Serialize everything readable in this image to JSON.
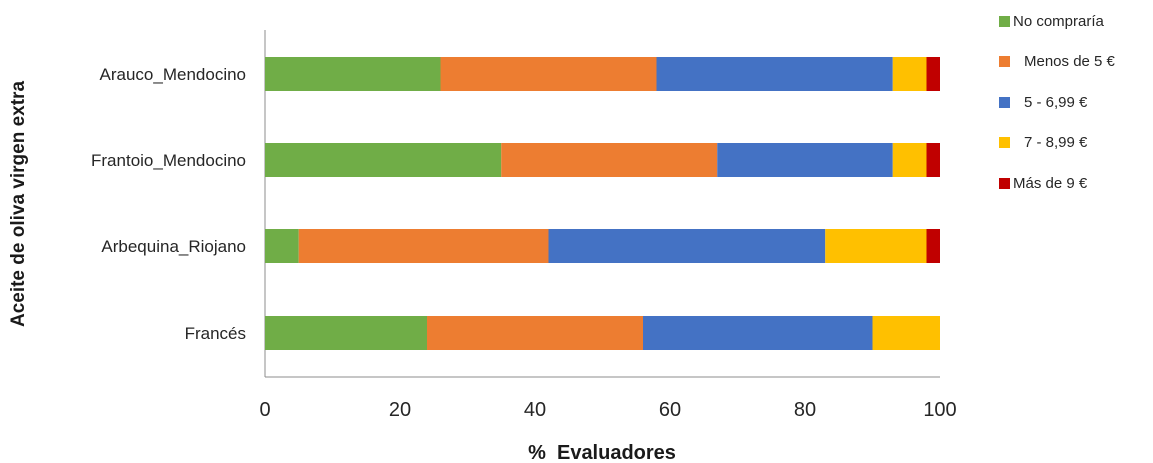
{
  "chart_data": {
    "type": "bar",
    "orientation": "horizontal",
    "stacked": true,
    "xlabel": "%  Evaluadores",
    "ylabel": "Aceite de oliva virgen extra",
    "xlim": [
      0,
      100
    ],
    "xticks": [
      "0",
      "20",
      "40",
      "60",
      "80",
      "100"
    ],
    "grid": false,
    "legend_position": "right",
    "categories": [
      "Arauco_Mendocino",
      "Frantoio_Mendocino",
      "Arbequina_Riojano",
      "Francés"
    ],
    "series": [
      {
        "name": "No compraría",
        "color": "#70ad47",
        "values": [
          26,
          35,
          5,
          24
        ]
      },
      {
        "name": "Menos de 5 €",
        "color": "#ed7d31",
        "values": [
          32,
          32,
          37,
          32
        ]
      },
      {
        "name": "5 - 6,99 €",
        "color": "#4472c4",
        "values": [
          35,
          26,
          41,
          34
        ]
      },
      {
        "name": "7 - 8,99 €",
        "color": "#ffc000",
        "values": [
          5,
          5,
          15,
          10
        ]
      },
      {
        "name": "Más de 9 €",
        "color": "#c00000",
        "values": [
          2,
          2,
          2,
          0
        ]
      }
    ]
  }
}
